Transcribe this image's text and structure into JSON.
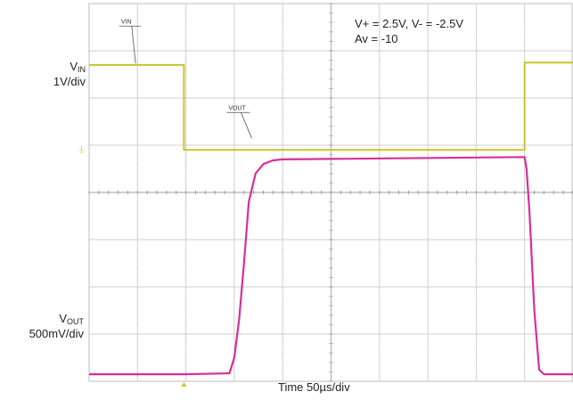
{
  "colors": {
    "vin": "#c9c42a",
    "vout": "#d62f9a",
    "grid": "#cfcfcf",
    "frame": "#bdbdbd",
    "text": "#222222"
  },
  "labels": {
    "vin_main": "V",
    "vin_sub": "IN",
    "vin_scale": "1V/div",
    "vout_main": "V",
    "vout_sub": "OUT",
    "vout_scale": "500mV/div",
    "conditions_line1": "V+ = 2.5V, V- = -2.5V",
    "conditions_line2": "Av = -10",
    "xlabel": "Time 50µs/div"
  },
  "chart_data": {
    "type": "line",
    "title": "",
    "xlabel": "Time 50µs/div",
    "x_divisions": 10,
    "y_divisions": 8,
    "grid": true,
    "series": [
      {
        "name": "VIN",
        "x_unit": "µs",
        "y_unit": "div",
        "x": [
          0,
          98,
          98,
          450,
          450,
          500
        ],
        "y": [
          6.7,
          6.7,
          4.9,
          4.9,
          6.75,
          6.75
        ]
      },
      {
        "name": "VOUT",
        "x_unit": "µs",
        "y_unit": "div",
        "x": [
          0,
          98,
          145,
          150,
          155,
          160,
          165,
          172,
          180,
          190,
          200,
          450,
          452,
          455,
          460,
          465,
          470,
          500
        ],
        "y": [
          0.15,
          0.15,
          0.17,
          0.5,
          1.3,
          2.5,
          3.8,
          4.4,
          4.6,
          4.68,
          4.7,
          4.75,
          4.5,
          3.6,
          1.5,
          0.25,
          0.15,
          0.15
        ]
      }
    ],
    "annotations": [
      {
        "text": "VIN",
        "target": "VIN"
      },
      {
        "text": "VOUT",
        "target": "VOUT"
      }
    ]
  }
}
